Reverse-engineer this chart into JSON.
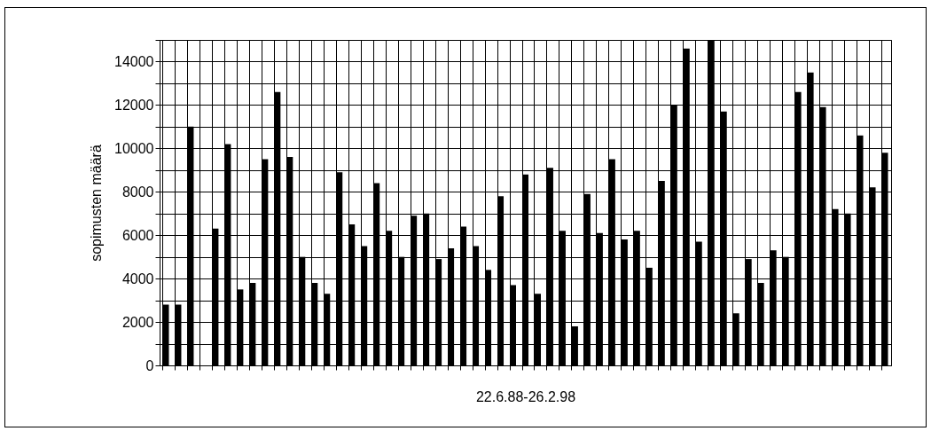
{
  "chart_data": {
    "type": "bar",
    "xlabel": "22.6.88-26.2.98",
    "ylabel": "sopimusten määrä",
    "categories": [
      null,
      null,
      null,
      null,
      null,
      null,
      null,
      null,
      null,
      null,
      null,
      null,
      null,
      null,
      null,
      null,
      null,
      null,
      null,
      null,
      null,
      null,
      null,
      null,
      null,
      null,
      null,
      null,
      null,
      null,
      null,
      null,
      null,
      null,
      null,
      null,
      null,
      null,
      null,
      null,
      null,
      null,
      null,
      null,
      null,
      null,
      null,
      null,
      null,
      null,
      null,
      null,
      null,
      null,
      null,
      null,
      null,
      null,
      null
    ],
    "values": [
      2800,
      2800,
      11000,
      null,
      6300,
      10200,
      3500,
      3800,
      9500,
      12600,
      9600,
      5000,
      3800,
      3300,
      8900,
      6500,
      5500,
      8400,
      6200,
      5000,
      6900,
      7000,
      4900,
      5400,
      6400,
      5500,
      4400,
      7800,
      3700,
      8800,
      3300,
      9100,
      6200,
      1800,
      7900,
      6100,
      9500,
      5800,
      6200,
      4500,
      8500,
      12000,
      14600,
      5700,
      15000,
      11700,
      2400,
      4900,
      3800,
      5300,
      5000,
      12600,
      13500,
      11900,
      7200,
      7000,
      10600,
      8200,
      9800
    ],
    "color": "#000000",
    "ylim": [
      0,
      15000
    ],
    "yticks": [
      0,
      {
        "value": 1000,
        "label": null
      },
      2000,
      {
        "value": 3000,
        "label": null
      },
      4000,
      {
        "value": 5000,
        "label": null
      },
      6000,
      {
        "value": 7000,
        "label": null
      },
      8000,
      {
        "value": 9000,
        "label": null
      },
      10000,
      {
        "value": 11000,
        "label": null
      },
      12000,
      {
        "value": 13000,
        "label": null
      },
      14000,
      {
        "value": 15000,
        "label": null
      }
    ],
    "grid": true,
    "tick_labels": "y"
  }
}
